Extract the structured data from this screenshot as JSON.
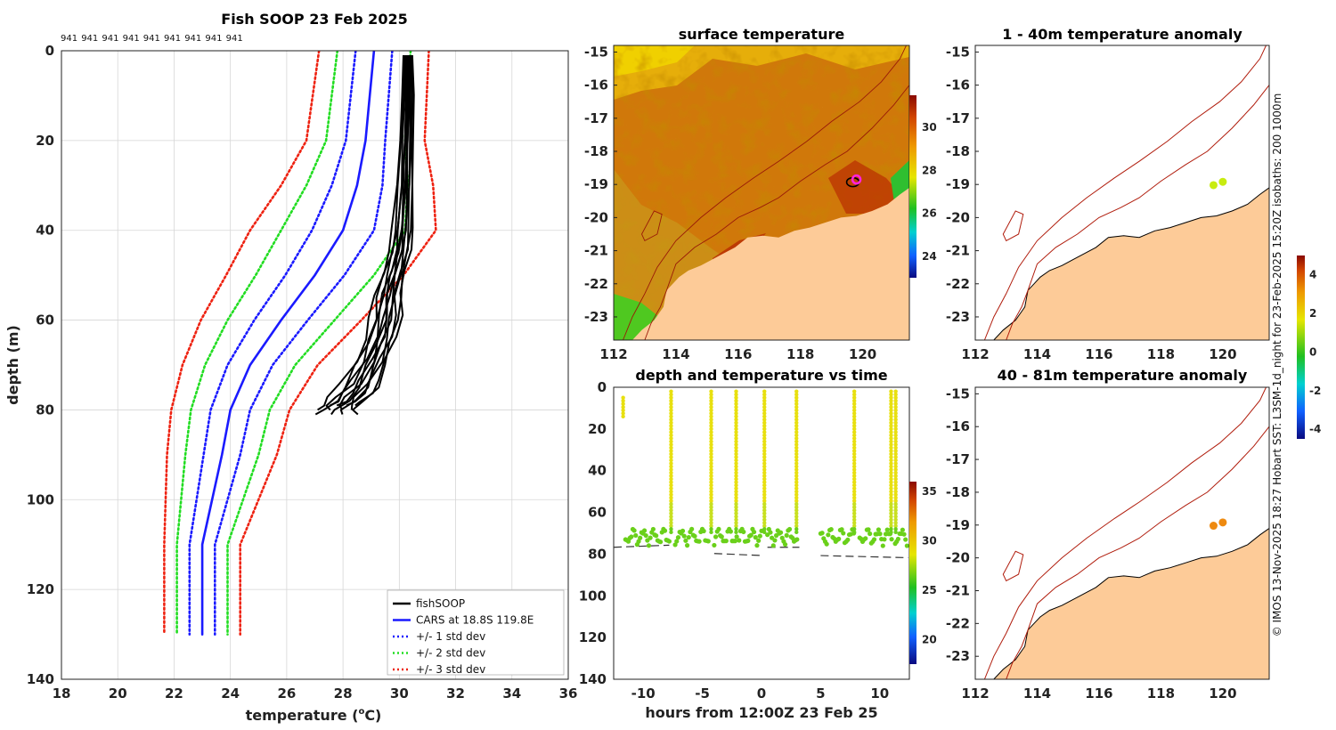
{
  "chart_data": [
    {
      "id": "profile",
      "type": "line",
      "title": "Fish SOOP 23 Feb 2025",
      "top_labels": [
        "941",
        "941",
        "941",
        "941",
        "941",
        "941",
        "941",
        "941",
        "941"
      ],
      "xlabel": "temperature (°C)",
      "xlabel_parts": [
        "temperature (",
        "o",
        "C)"
      ],
      "ylabel": "depth (m)",
      "xlim": [
        18,
        36
      ],
      "ylim": [
        140,
        0
      ],
      "xticks": [
        "18",
        "20",
        "22",
        "24",
        "26",
        "28",
        "30",
        "32",
        "34",
        "36"
      ],
      "yticks": [
        "0",
        "20",
        "40",
        "60",
        "80",
        "100",
        "120",
        "140"
      ],
      "legend_position": "bottom-right",
      "cars": {
        "depth": [
          0,
          20,
          30,
          40,
          50,
          60,
          70,
          80,
          90,
          110,
          130
        ],
        "mean": [
          29.1,
          28.8,
          28.5,
          28.0,
          27.0,
          25.8,
          24.7,
          24.0,
          23.7,
          23.0,
          23.0
        ],
        "std": [
          0.65,
          0.7,
          0.9,
          1.1,
          1.05,
          0.95,
          0.8,
          0.7,
          0.65,
          0.45,
          0.45
        ]
      },
      "fishsoop_profile": {
        "depth": [
          1,
          10,
          20,
          30,
          40,
          45,
          50,
          55,
          60,
          65,
          70,
          75,
          78,
          80,
          81
        ],
        "temperature": [
          30.3,
          30.3,
          30.25,
          30.2,
          30.1,
          30.0,
          29.8,
          29.6,
          29.5,
          29.3,
          29.0,
          28.6,
          28.2,
          27.9,
          27.8
        ]
      },
      "legend": [
        {
          "label": "fishSOOP",
          "color": "#000000",
          "style": "solid"
        },
        {
          "label": "CARS at 18.8S 119.8E",
          "color": "#1a1aff",
          "style": "solid"
        },
        {
          "label": "+/- 1 std dev",
          "color": "#1a1aff",
          "style": "dotted"
        },
        {
          "label": "+/- 2 std dev",
          "color": "#22dd22",
          "style": "dotted"
        },
        {
          "label": "+/- 3 std dev",
          "color": "#ee2211",
          "style": "dotted"
        }
      ]
    },
    {
      "id": "sst_map",
      "type": "heatmap",
      "title": "surface temperature",
      "xlim": [
        112,
        121.5
      ],
      "ylim": [
        -23.7,
        -14.8
      ],
      "xticks": [
        "112",
        "114",
        "116",
        "118",
        "120"
      ],
      "yticks": [
        "-15",
        "-16",
        "-17",
        "-18",
        "-19",
        "-20",
        "-21",
        "-22",
        "-23"
      ],
      "colorbar_ticks": [
        "24",
        "26",
        "28",
        "30"
      ],
      "colorbar_range": [
        23,
        31.5
      ],
      "vessel_position": {
        "lon": 119.8,
        "lat": -18.85
      }
    },
    {
      "id": "depth_time",
      "type": "scatter",
      "title": "depth and temperature vs time",
      "xlabel": "hours from 12:00Z 23 Feb 25",
      "xlim": [
        -12.5,
        12.5
      ],
      "ylim": [
        140,
        0
      ],
      "xticks": [
        "-10",
        "-5",
        "0",
        "5",
        "10"
      ],
      "yticks": [
        "0",
        "20",
        "40",
        "60",
        "80",
        "100",
        "120",
        "140"
      ],
      "colorbar_ticks": [
        "20",
        "25",
        "30",
        "35"
      ],
      "colorbar_range": [
        17.5,
        36
      ],
      "casts": [
        {
          "start": -11.5,
          "end": -7.8,
          "dip": -7.6
        },
        {
          "start": -7.3,
          "end": -4.5,
          "dip": -4.3
        },
        {
          "start": -4.0,
          "end": -2.1,
          "dip": -2.1
        },
        {
          "start": -1.9,
          "end": 0.0,
          "dip": 0.2
        },
        {
          "start": 0.5,
          "end": 3.0,
          "dip": 3.0
        },
        {
          "start": 5.0,
          "end": 7.8,
          "dip": 7.8
        },
        {
          "start": 8.3,
          "end": 11.0,
          "dip": 11.0
        },
        {
          "start": 11.3,
          "end": 12.3,
          "dip": 11.3
        }
      ],
      "bottom_segments": [
        {
          "x": [
            -12.5,
            -7.8
          ],
          "depth": [
            75,
            74
          ]
        },
        {
          "x": [
            -4.0,
            0.2
          ],
          "depth": [
            78,
            79
          ]
        },
        {
          "x": [
            0.5,
            3.2
          ],
          "depth": [
            75,
            75
          ]
        },
        {
          "x": [
            5.0,
            12.4
          ],
          "depth": [
            79,
            80
          ]
        }
      ]
    },
    {
      "id": "anom_1_40",
      "type": "heatmap",
      "title": "1 - 40m temperature anomaly",
      "xlim": [
        112,
        121.5
      ],
      "ylim": [
        -23.7,
        -14.8
      ],
      "xticks": [
        "112",
        "114",
        "116",
        "118",
        "120"
      ],
      "yticks": [
        "-15",
        "-16",
        "-17",
        "-18",
        "-19",
        "-20",
        "-21",
        "-22",
        "-23"
      ],
      "points": [
        {
          "lon": 119.7,
          "lat": -19.02,
          "anomaly": 1.6
        },
        {
          "lon": 120.0,
          "lat": -18.92,
          "anomaly": 1.8
        }
      ]
    },
    {
      "id": "anom_40_81",
      "type": "heatmap",
      "title": "40 - 81m temperature anomaly",
      "xlim": [
        112,
        121.5
      ],
      "ylim": [
        -23.7,
        -14.8
      ],
      "xticks": [
        "112",
        "114",
        "116",
        "118",
        "120"
      ],
      "yticks": [
        "-15",
        "-16",
        "-17",
        "-18",
        "-19",
        "-20",
        "-21",
        "-22",
        "-23"
      ],
      "points": [
        {
          "lon": 119.7,
          "lat": -19.02,
          "anomaly": 3.0
        },
        {
          "lon": 120.0,
          "lat": -18.92,
          "anomaly": 3.2
        }
      ],
      "colorbar_ticks": [
        "-4",
        "-2",
        "0",
        "2",
        "4"
      ],
      "colorbar_range": [
        -4.5,
        5
      ],
      "footer": "© IMOS 13-Nov-2025 18:27 Hobart SST: L3SM-1d_night for 23-Feb-2025 15:20Z isobaths: 200  1000m"
    }
  ]
}
